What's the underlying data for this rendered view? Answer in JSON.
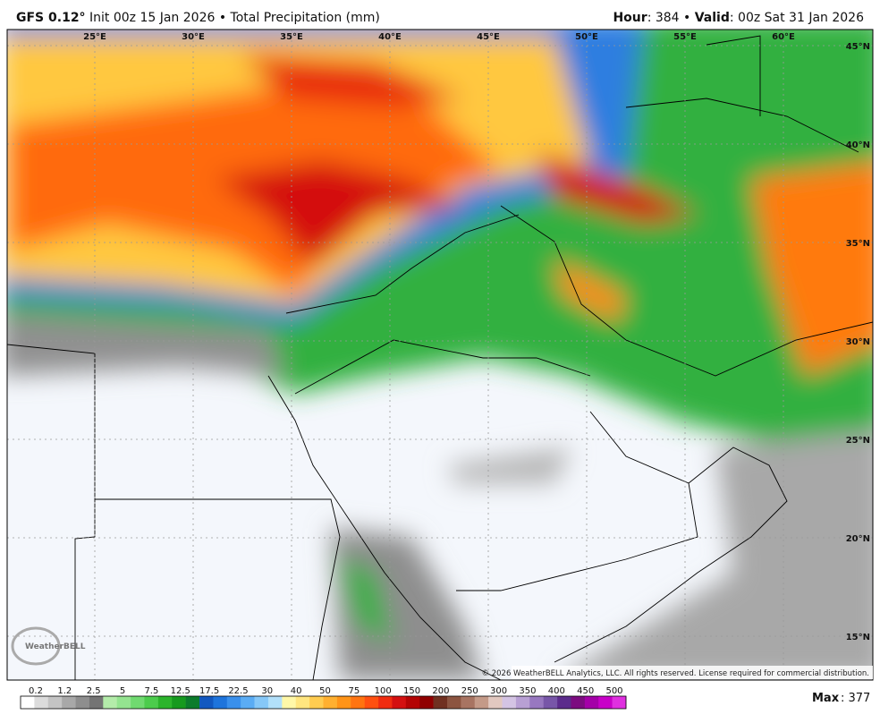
{
  "header": {
    "model": "GFS 0.12°",
    "run": "Init 00z 15 Jan 2026 • Total Precipitation (mm)",
    "hour_label": "Hour",
    "hour": ": 384 • ",
    "valid_label": "Valid",
    "valid": ": 00z Sat 31 Jan 2026"
  },
  "map": {
    "lon_labels": [
      "25°E",
      "30°E",
      "35°E",
      "40°E",
      "45°E",
      "50°E",
      "55°E",
      "60°E"
    ],
    "lat_labels": [
      "45°N",
      "40°N",
      "35°N",
      "30°N",
      "25°N",
      "20°N",
      "15°N"
    ],
    "copyright": "© 2026 WeatherBELL Analytics, LLC. All rights reserved. License required for commercial distribution.",
    "watermark": "WeatherBELL"
  },
  "legend": {
    "ticks": [
      0.2,
      1.2,
      2.5,
      5,
      7.5,
      12.5,
      17.5,
      22.5,
      30,
      40,
      50,
      75,
      100,
      150,
      200,
      250,
      300,
      350,
      400,
      450,
      500
    ],
    "colors": [
      "#ffffff",
      "#dcdcdc",
      "#c4c4c4",
      "#a8a8a8",
      "#8e8e8e",
      "#747474",
      "#b4ecaa",
      "#94e490",
      "#70da70",
      "#4ccc4c",
      "#2cb42c",
      "#169a1e",
      "#0c7c2c",
      "#1258c0",
      "#1e74dc",
      "#3a90ec",
      "#5aacf4",
      "#86c8f8",
      "#b2e0fa",
      "#fff8a8",
      "#ffe680",
      "#ffcc50",
      "#ffb030",
      "#ff9418",
      "#ff7410",
      "#ff5010",
      "#f02c10",
      "#d41010",
      "#b40404",
      "#900000",
      "#703020",
      "#8c5440",
      "#a87462",
      "#c49a88",
      "#e2c8c0",
      "#d4c4e4",
      "#b8a0d4",
      "#9878c0",
      "#7856a8",
      "#5c2c8c",
      "#7c0c80",
      "#a400a8",
      "#c800c8",
      "#e030e0"
    ],
    "max_label": "Max",
    "max": ": 377"
  }
}
